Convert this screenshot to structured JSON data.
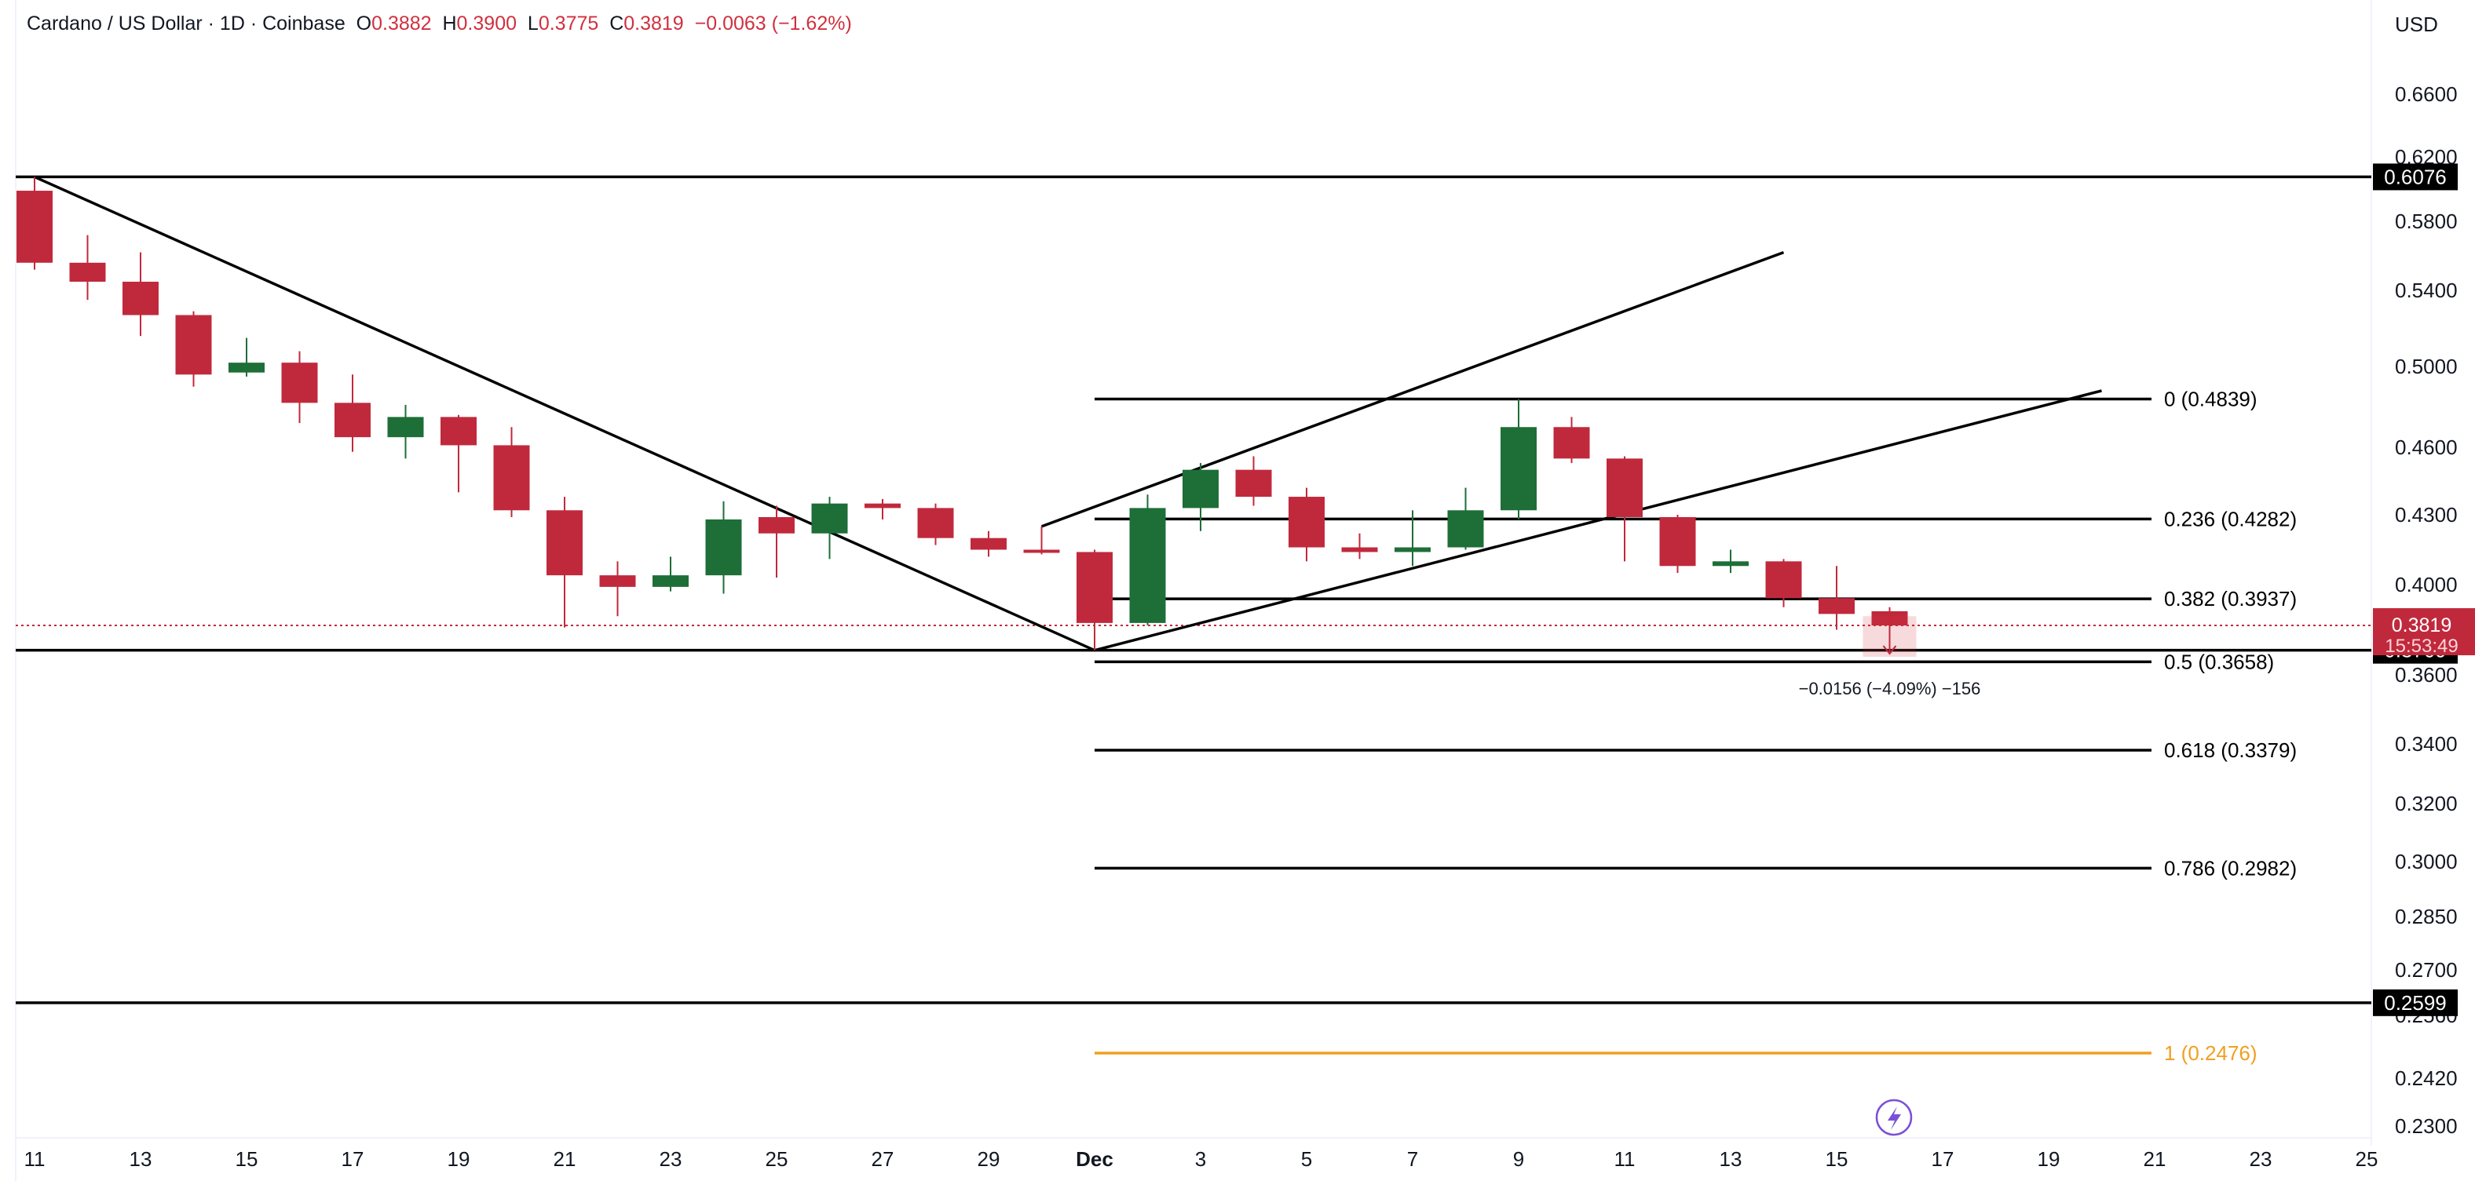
{
  "header": {
    "symbol": "Cardano / US Dollar · 1D · Coinbase",
    "open_label": "O",
    "open": "0.3882",
    "high_label": "H",
    "high": "0.3900",
    "low_label": "L",
    "low": "0.3775",
    "close_label": "C",
    "close": "0.3819",
    "change": "−0.0063 (−1.62%)",
    "currency": "USD"
  },
  "colors": {
    "up": "#1e6e38",
    "down": "#c0293c",
    "fib_one": "#f0a020",
    "line": "#000000",
    "text": "#131722"
  },
  "chart_data": {
    "type": "candlestick",
    "y_ticks": [
      "0.6600",
      "0.6200",
      "0.5800",
      "0.5400",
      "0.5000",
      "0.4600",
      "0.4300",
      "0.4000",
      "0.3600",
      "0.3400",
      "0.3200",
      "0.3000",
      "0.2850",
      "0.2700",
      "0.2560",
      "0.2420",
      "0.2300"
    ],
    "x_ticks": [
      "11",
      "13",
      "15",
      "17",
      "19",
      "21",
      "23",
      "25",
      "27",
      "29",
      "Dec",
      "3",
      "5",
      "7",
      "9",
      "11",
      "13",
      "15",
      "17",
      "19",
      "21",
      "23",
      "25"
    ],
    "candles": [
      {
        "date": "Nov 11",
        "o": 0.599,
        "h": 0.6076,
        "l": 0.552,
        "c": 0.556
      },
      {
        "date": "Nov 12",
        "o": 0.556,
        "h": 0.572,
        "l": 0.535,
        "c": 0.545
      },
      {
        "date": "Nov 13",
        "o": 0.545,
        "h": 0.562,
        "l": 0.516,
        "c": 0.527
      },
      {
        "date": "Nov 14",
        "o": 0.527,
        "h": 0.529,
        "l": 0.49,
        "c": 0.496
      },
      {
        "date": "Nov 15",
        "o": 0.497,
        "h": 0.515,
        "l": 0.495,
        "c": 0.502
      },
      {
        "date": "Nov 16",
        "o": 0.502,
        "h": 0.508,
        "l": 0.472,
        "c": 0.482
      },
      {
        "date": "Nov 17",
        "o": 0.482,
        "h": 0.496,
        "l": 0.458,
        "c": 0.465
      },
      {
        "date": "Nov 18",
        "o": 0.465,
        "h": 0.481,
        "l": 0.455,
        "c": 0.475
      },
      {
        "date": "Nov 19",
        "o": 0.475,
        "h": 0.476,
        "l": 0.44,
        "c": 0.461
      },
      {
        "date": "Nov 20",
        "o": 0.461,
        "h": 0.47,
        "l": 0.429,
        "c": 0.432
      },
      {
        "date": "Nov 21",
        "o": 0.432,
        "h": 0.438,
        "l": 0.381,
        "c": 0.404
      },
      {
        "date": "Nov 22",
        "o": 0.404,
        "h": 0.41,
        "l": 0.386,
        "c": 0.399
      },
      {
        "date": "Nov 23",
        "o": 0.399,
        "h": 0.412,
        "l": 0.397,
        "c": 0.404
      },
      {
        "date": "Nov 24",
        "o": 0.404,
        "h": 0.436,
        "l": 0.396,
        "c": 0.428
      },
      {
        "date": "Nov 25",
        "o": 0.429,
        "h": 0.434,
        "l": 0.403,
        "c": 0.422
      },
      {
        "date": "Nov 26",
        "o": 0.422,
        "h": 0.438,
        "l": 0.411,
        "c": 0.435
      },
      {
        "date": "Nov 27",
        "o": 0.435,
        "h": 0.437,
        "l": 0.428,
        "c": 0.433
      },
      {
        "date": "Nov 28",
        "o": 0.433,
        "h": 0.435,
        "l": 0.417,
        "c": 0.42
      },
      {
        "date": "Nov 29",
        "o": 0.42,
        "h": 0.423,
        "l": 0.412,
        "c": 0.415
      },
      {
        "date": "Nov 30",
        "o": 0.415,
        "h": 0.425,
        "l": 0.413,
        "c": 0.414
      },
      {
        "date": "Dec 1",
        "o": 0.414,
        "h": 0.415,
        "l": 0.3709,
        "c": 0.383
      },
      {
        "date": "Dec 2",
        "o": 0.383,
        "h": 0.439,
        "l": 0.382,
        "c": 0.433
      },
      {
        "date": "Dec 3",
        "o": 0.433,
        "h": 0.453,
        "l": 0.423,
        "c": 0.45
      },
      {
        "date": "Dec 4",
        "o": 0.45,
        "h": 0.456,
        "l": 0.434,
        "c": 0.438
      },
      {
        "date": "Dec 5",
        "o": 0.438,
        "h": 0.442,
        "l": 0.41,
        "c": 0.416
      },
      {
        "date": "Dec 6",
        "o": 0.416,
        "h": 0.422,
        "l": 0.411,
        "c": 0.414
      },
      {
        "date": "Dec 7",
        "o": 0.414,
        "h": 0.432,
        "l": 0.408,
        "c": 0.416
      },
      {
        "date": "Dec 8",
        "o": 0.416,
        "h": 0.442,
        "l": 0.415,
        "c": 0.432
      },
      {
        "date": "Dec 9",
        "o": 0.432,
        "h": 0.4839,
        "l": 0.428,
        "c": 0.47
      },
      {
        "date": "Dec 10",
        "o": 0.47,
        "h": 0.475,
        "l": 0.453,
        "c": 0.455
      },
      {
        "date": "Dec 11",
        "o": 0.455,
        "h": 0.456,
        "l": 0.41,
        "c": 0.429
      },
      {
        "date": "Dec 12",
        "o": 0.429,
        "h": 0.43,
        "l": 0.405,
        "c": 0.408
      },
      {
        "date": "Dec 13",
        "o": 0.408,
        "h": 0.415,
        "l": 0.405,
        "c": 0.41
      },
      {
        "date": "Dec 14",
        "o": 0.41,
        "h": 0.411,
        "l": 0.39,
        "c": 0.394
      },
      {
        "date": "Dec 15",
        "o": 0.394,
        "h": 0.408,
        "l": 0.38,
        "c": 0.387
      },
      {
        "date": "Dec 16",
        "o": 0.3882,
        "h": 0.39,
        "l": 0.3775,
        "c": 0.3819
      }
    ],
    "horizontal_levels": [
      {
        "price": 0.6076,
        "label": "0.6076"
      },
      {
        "price": 0.3709,
        "label": "0.3709"
      },
      {
        "price": 0.2599,
        "label": "0.2599"
      }
    ],
    "fib_levels": [
      {
        "ratio": "0",
        "price": 0.4839,
        "label": "0 (0.4839)"
      },
      {
        "ratio": "0.236",
        "price": 0.4282,
        "label": "0.236 (0.4282)"
      },
      {
        "ratio": "0.382",
        "price": 0.3937,
        "label": "0.382 (0.3937)"
      },
      {
        "ratio": "0.5",
        "price": 0.3658,
        "label": "0.5 (0.3658)"
      },
      {
        "ratio": "0.618",
        "price": 0.3379,
        "label": "0.618 (0.3379)"
      },
      {
        "ratio": "0.786",
        "price": 0.2982,
        "label": "0.786 (0.2982)"
      },
      {
        "ratio": "1",
        "price": 0.2476,
        "label": "1 (0.2476)"
      }
    ],
    "trendlines": [
      {
        "from": {
          "date": "Nov 11",
          "price": 0.6076
        },
        "to": {
          "date": "Dec 1",
          "price": 0.3709
        }
      },
      {
        "from": {
          "date": "Dec 1",
          "price": 0.3709
        },
        "to": {
          "date": "Dec 20",
          "price": 0.488
        }
      },
      {
        "from": {
          "date": "Nov 30",
          "price": 0.425
        },
        "to": {
          "date": "Dec 14",
          "price": 0.562
        }
      }
    ],
    "last_price": {
      "value": "0.3819",
      "countdown": "15:53:49"
    },
    "measure_annotation": "−0.0156 (−4.09%) −156"
  }
}
